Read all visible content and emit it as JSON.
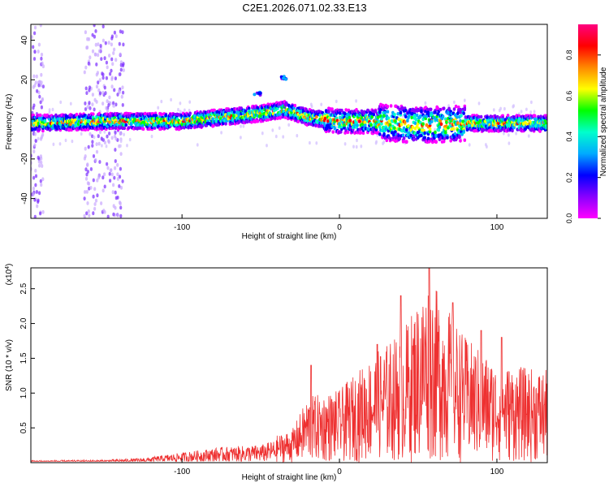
{
  "title": "C2E1.2026.071.02.33.E13",
  "chart_data": [
    {
      "type": "heatmap",
      "xlabel": "Height of straight line (km)",
      "ylabel": "Frequency (Hz)",
      "xlim": [
        -196,
        132
      ],
      "ylim": [
        -50,
        48
      ],
      "xticks": [
        -100,
        0,
        100
      ],
      "yticks": [
        -40,
        -20,
        0,
        20,
        40
      ],
      "grid": false,
      "colorbar": {
        "label": "Normalized spectral amplitude",
        "range": [
          0.0,
          0.95
        ],
        "ticks": [
          0.0,
          0.2,
          0.4,
          0.6,
          0.8
        ],
        "tick_labels": [
          "0.0",
          "0.2",
          "0.4",
          "0.6",
          "0.8"
        ],
        "colormap": [
          "#ff00ff",
          "#8800ff",
          "#0000ff",
          "#00aaff",
          "#00ffcc",
          "#00ff00",
          "#ffff00",
          "#ff8800",
          "#ff0000",
          "#ff0080"
        ]
      },
      "band_center_freq": [
        {
          "x": -196,
          "y": -2
        },
        {
          "x": -150,
          "y": -1
        },
        {
          "x": -100,
          "y": -1
        },
        {
          "x": -75,
          "y": 1
        },
        {
          "x": -50,
          "y": 3
        },
        {
          "x": -35,
          "y": 5
        },
        {
          "x": -20,
          "y": 1
        },
        {
          "x": 0,
          "y": -1
        },
        {
          "x": 20,
          "y": -1
        },
        {
          "x": 50,
          "y": -3
        },
        {
          "x": 80,
          "y": -2
        },
        {
          "x": 132,
          "y": -2
        }
      ],
      "secondary_features": [
        {
          "x": -52,
          "y": 13
        },
        {
          "x": -35,
          "y": 21
        }
      ],
      "noisy_columns_km": [
        [
          -196,
          -188
        ],
        [
          -162,
          -137
        ]
      ]
    },
    {
      "type": "line",
      "xlabel": "Height of straight line (km)",
      "ylabel": "SNR (10 * v/v)",
      "y_multiplier": "(x10",
      "y_multiplier_exp": "4",
      "y_multiplier_close": ")",
      "xlim": [
        -196,
        132
      ],
      "ylim": [
        0,
        2.8
      ],
      "xticks": [
        -100,
        0,
        100
      ],
      "yticks": [
        0.5,
        1.0,
        1.5,
        2.0,
        2.5
      ],
      "ytick_labels": [
        "0.5",
        "1.0",
        "1.5",
        "2.0",
        "2.5"
      ],
      "grid": false,
      "color": "#ee3030",
      "envelope": [
        {
          "x": -196,
          "y": 0.04
        },
        {
          "x": -150,
          "y": 0.05
        },
        {
          "x": -125,
          "y": 0.08
        },
        {
          "x": -100,
          "y": 0.18
        },
        {
          "x": -75,
          "y": 0.28
        },
        {
          "x": -50,
          "y": 0.32
        },
        {
          "x": -30,
          "y": 0.5
        },
        {
          "x": -20,
          "y": 1.0
        },
        {
          "x": 0,
          "y": 1.1
        },
        {
          "x": 20,
          "y": 1.6
        },
        {
          "x": 40,
          "y": 2.0
        },
        {
          "x": 57,
          "y": 2.8
        },
        {
          "x": 80,
          "y": 1.9
        },
        {
          "x": 100,
          "y": 1.5
        },
        {
          "x": 132,
          "y": 1.4
        }
      ],
      "peaks": [
        {
          "x": -18,
          "y": 1.4
        },
        {
          "x": 24,
          "y": 1.7
        },
        {
          "x": 39,
          "y": 2.4
        },
        {
          "x": 57,
          "y": 2.8
        },
        {
          "x": 72,
          "y": 2.3
        },
        {
          "x": 90,
          "y": 1.9
        },
        {
          "x": 103,
          "y": 1.8
        }
      ]
    }
  ]
}
